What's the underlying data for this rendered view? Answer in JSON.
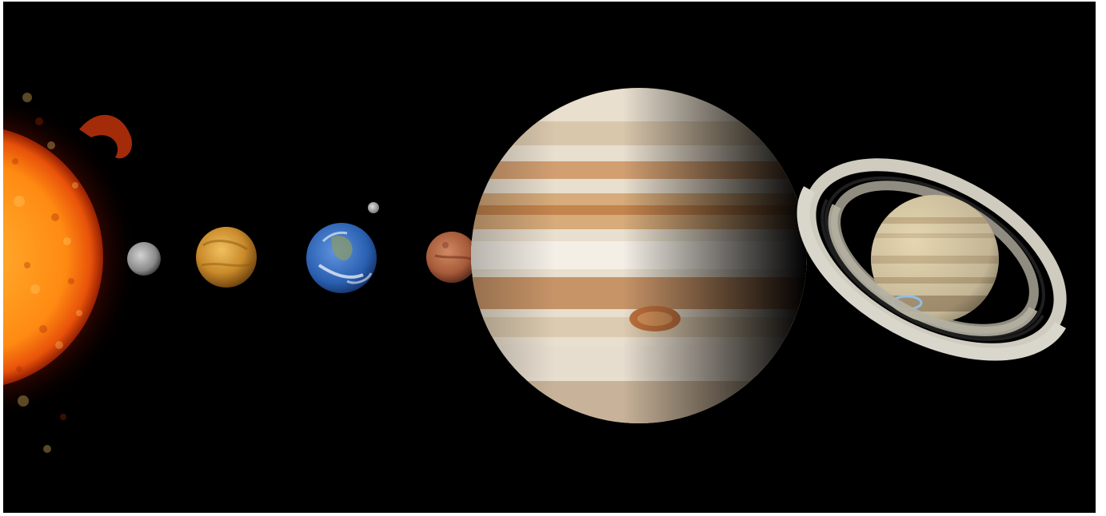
{
  "scene": {
    "description_free": true,
    "background_color": "#000000",
    "frame_color": "#ffffff"
  },
  "bodies": [
    {
      "id": "sun",
      "kind": "star",
      "colors": {
        "core": "#ff9a1a",
        "mid": "#e8520a",
        "edge": "#7a1000"
      }
    },
    {
      "id": "mercury",
      "kind": "planet",
      "colors": {
        "light": "#b5b5b5",
        "dark": "#5a5a5a"
      }
    },
    {
      "id": "venus",
      "kind": "planet",
      "colors": {
        "light": "#e6b04a",
        "dark": "#7a4a10"
      }
    },
    {
      "id": "earth",
      "kind": "planet",
      "colors": {
        "ocean": "#2a5fb0",
        "land": "#8a9a6a",
        "cloud": "#ffffff"
      }
    },
    {
      "id": "moon",
      "kind": "moon",
      "colors": {
        "light": "#cfcfcf",
        "dark": "#6b6b6b"
      }
    },
    {
      "id": "mars",
      "kind": "planet",
      "colors": {
        "light": "#c77a55",
        "dark": "#5e2a1a"
      }
    },
    {
      "id": "jupiter",
      "kind": "planet",
      "colors": {
        "band_light": "#efe8dc",
        "band_orange": "#c98a52",
        "band_tan": "#d7b591",
        "spot": "#c0713d"
      }
    },
    {
      "id": "saturn",
      "kind": "planet",
      "colors": {
        "body": "#e6d6b0",
        "band": "#cbb58d",
        "ring_light": "#d9d6cc",
        "ring_dark": "#2a2a2a",
        "aurora": "#8ac8ff"
      }
    }
  ]
}
